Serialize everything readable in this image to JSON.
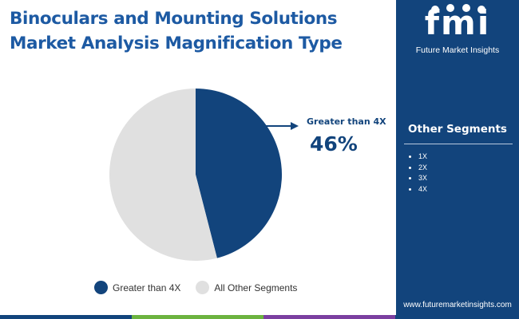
{
  "title": "Binoculars and Mounting Solutions Market Analysis Magnification Type",
  "brand": {
    "logo_text": "fmi",
    "name": "Future Market Insights",
    "url": "www.futuremarketinsights.com"
  },
  "sidebar": {
    "heading": "Other Segments",
    "items": [
      "1X",
      "2X",
      "3X",
      "4X"
    ]
  },
  "callout": {
    "label": "Greater than 4X",
    "value": "46%"
  },
  "legend": [
    {
      "label": "Greater than 4X",
      "color": "#12447c"
    },
    {
      "label": "All Other Segments",
      "color": "#e0e0e0"
    }
  ],
  "colors": {
    "primary": "#12447c",
    "title": "#1d5aa3",
    "other": "#e0e0e0",
    "bar": [
      "#12447c",
      "#6cb33f",
      "#7b3fa0"
    ]
  },
  "chart_data": {
    "type": "pie",
    "title": "Binoculars and Mounting Solutions Market Analysis Magnification Type",
    "slices": [
      {
        "label": "Greater than 4X",
        "value": 46,
        "color": "#12447c"
      },
      {
        "label": "All Other Segments",
        "value": 54,
        "color": "#e0e0e0"
      }
    ],
    "start_angle_deg": 0,
    "direction": "clockwise",
    "legend_position": "bottom"
  }
}
